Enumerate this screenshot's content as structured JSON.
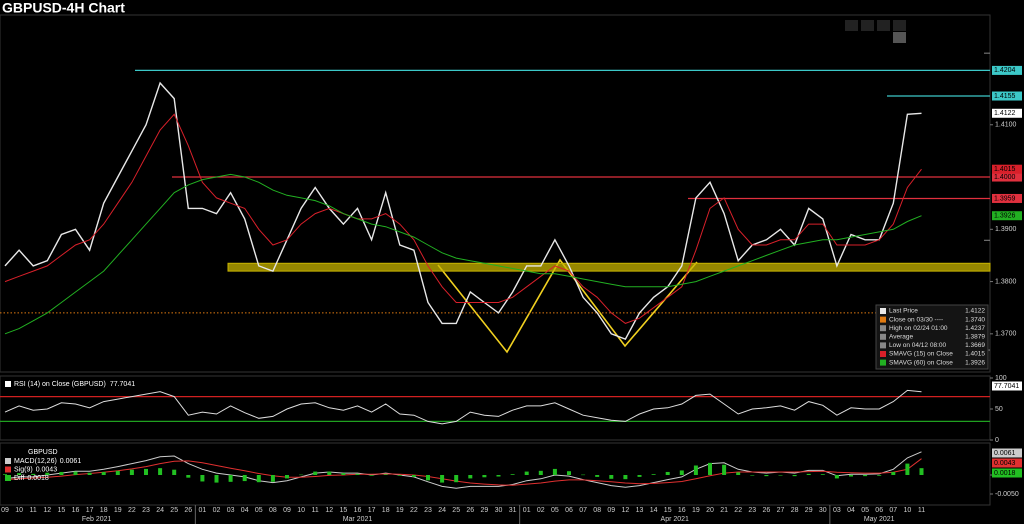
{
  "chart_data": [
    {
      "type": "line",
      "title": "GBPUSD-4H Chart",
      "categories": [
        "09",
        "10",
        "11",
        "12",
        "15",
        "16",
        "17",
        "18",
        "19",
        "22",
        "23",
        "24",
        "25",
        "26",
        "01",
        "02",
        "03",
        "04",
        "05",
        "08",
        "09",
        "10",
        "11",
        "12",
        "15",
        "16",
        "17",
        "18",
        "19",
        "22",
        "23",
        "24",
        "25",
        "26",
        "29",
        "30",
        "31",
        "01",
        "02",
        "05",
        "06",
        "07",
        "08",
        "09",
        "12",
        "13",
        "14",
        "15",
        "16",
        "19",
        "20",
        "21",
        "22",
        "23",
        "26",
        "27",
        "28",
        "29",
        "30",
        "03",
        "04",
        "05",
        "06",
        "07",
        "10",
        "11"
      ],
      "month_labels": [
        "Feb 2021",
        "Mar 2021",
        "Apr 2021",
        "May 2021"
      ],
      "ylim": [
        1.3627,
        1.431
      ],
      "yticks": [
        {
          "value": 1.37,
          "label": "1.3700"
        },
        {
          "value": 1.38,
          "label": "1.3800"
        },
        {
          "value": 1.39,
          "label": "1.3900"
        },
        {
          "value": 1.41,
          "label": "1.4100"
        }
      ],
      "series": [
        {
          "name": "Last Price",
          "color": "#e8e8e8",
          "values": [
            1.383,
            1.386,
            1.383,
            1.384,
            1.389,
            1.39,
            1.386,
            1.395,
            1.4,
            1.405,
            1.41,
            1.418,
            1.415,
            1.394,
            1.394,
            1.393,
            1.397,
            1.392,
            1.383,
            1.382,
            1.388,
            1.394,
            1.398,
            1.394,
            1.391,
            1.394,
            1.388,
            1.397,
            1.387,
            1.386,
            1.376,
            1.372,
            1.372,
            1.378,
            1.376,
            1.374,
            1.378,
            1.383,
            1.383,
            1.388,
            1.383,
            1.377,
            1.374,
            1.37,
            1.369,
            1.374,
            1.377,
            1.379,
            1.383,
            1.396,
            1.399,
            1.393,
            1.384,
            1.387,
            1.388,
            1.39,
            1.387,
            1.394,
            1.392,
            1.383,
            1.389,
            1.388,
            1.388,
            1.395,
            1.412,
            1.4122
          ]
        },
        {
          "name": "SMAVG (15)  on Close",
          "color": "#d8202a",
          "values": [
            1.38,
            1.381,
            1.382,
            1.383,
            1.385,
            1.387,
            1.388,
            1.391,
            1.395,
            1.399,
            1.404,
            1.409,
            1.412,
            1.406,
            1.399,
            1.396,
            1.395,
            1.394,
            1.39,
            1.387,
            1.388,
            1.391,
            1.393,
            1.394,
            1.393,
            1.392,
            1.392,
            1.393,
            1.391,
            1.388,
            1.383,
            1.379,
            1.376,
            1.376,
            1.376,
            1.376,
            1.377,
            1.379,
            1.381,
            1.383,
            1.382,
            1.379,
            1.377,
            1.374,
            1.372,
            1.373,
            1.375,
            1.377,
            1.379,
            1.386,
            1.394,
            1.396,
            1.39,
            1.387,
            1.387,
            1.388,
            1.388,
            1.391,
            1.391,
            1.387,
            1.387,
            1.387,
            1.388,
            1.391,
            1.398,
            1.4015
          ]
        },
        {
          "name": "SMAVG (60)  on Close",
          "color": "#22b022",
          "values": [
            1.37,
            1.371,
            1.3725,
            1.374,
            1.376,
            1.378,
            1.38,
            1.382,
            1.385,
            1.388,
            1.391,
            1.394,
            1.397,
            1.3985,
            1.3995,
            1.4,
            1.4005,
            1.4,
            1.399,
            1.3975,
            1.3965,
            1.396,
            1.3955,
            1.3945,
            1.393,
            1.392,
            1.391,
            1.3905,
            1.3895,
            1.3885,
            1.387,
            1.3855,
            1.3845,
            1.384,
            1.3835,
            1.383,
            1.3825,
            1.382,
            1.3815,
            1.3815,
            1.381,
            1.3805,
            1.38,
            1.3795,
            1.379,
            1.379,
            1.379,
            1.379,
            1.3795,
            1.38,
            1.381,
            1.382,
            1.383,
            1.384,
            1.385,
            1.386,
            1.387,
            1.3875,
            1.388,
            1.388,
            1.3885,
            1.389,
            1.3895,
            1.39,
            1.3915,
            1.3926
          ]
        }
      ],
      "stats": [
        {
          "label": "Close on 03/30 ----",
          "value": 1.374,
          "value_label": "1.3740",
          "color": "#e07a10"
        },
        {
          "label": "High on 02/24 01:00",
          "value": 1.4237,
          "color": "#888888"
        },
        {
          "label": "Average",
          "value": 1.3879,
          "color": "#888888"
        },
        {
          "label": "Low on 04/12 08:00",
          "value": 1.3669,
          "color": "#888888"
        }
      ],
      "levels": [
        {
          "value": 1.4204,
          "color": "#3cc8c8"
        },
        {
          "value": 1.4155,
          "color": "#3cc8c8"
        },
        {
          "value": 1.4,
          "label": "1.4000",
          "color": "#e0303e"
        },
        {
          "value": 1.3959,
          "color": "#e0303e"
        }
      ],
      "band": {
        "range": [
          1.382,
          1.3835
        ],
        "color": "#c8b400"
      }
    },
    {
      "type": "line",
      "title": "RSI (14)  on Close (GBPUSD)",
      "ylim": [
        0,
        100
      ],
      "yticks": [
        0,
        50,
        100
      ],
      "levels": [
        {
          "value": 70,
          "color": "#d02020"
        },
        {
          "value": 30,
          "color": "#20a020"
        }
      ],
      "series": [
        {
          "name": "RSI",
          "color": "#dddddd",
          "values": [
            45,
            55,
            48,
            50,
            60,
            58,
            52,
            62,
            66,
            70,
            74,
            78,
            70,
            40,
            45,
            42,
            55,
            44,
            35,
            38,
            50,
            58,
            60,
            52,
            48,
            55,
            45,
            58,
            42,
            40,
            30,
            26,
            30,
            45,
            40,
            38,
            48,
            55,
            55,
            60,
            50,
            40,
            36,
            32,
            30,
            42,
            50,
            52,
            58,
            72,
            74,
            58,
            42,
            50,
            52,
            55,
            48,
            62,
            56,
            40,
            52,
            50,
            50,
            62,
            80,
            77.7041
          ]
        }
      ]
    },
    {
      "type": "line",
      "title": "GBPUSD",
      "ylim": [
        -0.0079,
        0.0079
      ],
      "yticks": [
        {
          "value": 0,
          "label": "0.00"
        },
        {
          "value": -0.005,
          "label": "-0.0050"
        }
      ],
      "series": [
        {
          "name": "MACD(12,26)",
          "color": "#cccccc",
          "values": [
            -0.001,
            -0.0005,
            -0.0005,
            0.0,
            0.0005,
            0.001,
            0.001,
            0.0015,
            0.0022,
            0.003,
            0.0038,
            0.0048,
            0.005,
            0.003,
            0.0015,
            0.0005,
            0.0,
            -0.0005,
            -0.0015,
            -0.002,
            -0.0015,
            -0.0005,
            0.0005,
            0.0008,
            0.0005,
            0.0005,
            0.0,
            0.0005,
            0.0,
            -0.0005,
            -0.0018,
            -0.003,
            -0.0035,
            -0.003,
            -0.003,
            -0.003,
            -0.0025,
            -0.0015,
            -0.001,
            0.0,
            -0.0003,
            -0.0012,
            -0.002,
            -0.0028,
            -0.0032,
            -0.0028,
            -0.002,
            -0.0012,
            -0.0005,
            0.0015,
            0.003,
            0.0032,
            0.0015,
            0.0008,
            0.0005,
            0.0008,
            0.0005,
            0.0012,
            0.0012,
            -0.0002,
            0.0002,
            0.0002,
            0.0003,
            0.0015,
            0.0045,
            0.0061
          ]
        },
        {
          "name": "Sig(9)",
          "color": "#e03030",
          "values": [
            -0.0012,
            -0.001,
            -0.0008,
            -0.0006,
            -0.0003,
            0.0001,
            0.0004,
            0.0007,
            0.0011,
            0.0016,
            0.0022,
            0.003,
            0.0036,
            0.0037,
            0.0032,
            0.0025,
            0.0018,
            0.0011,
            0.0004,
            -0.0002,
            -0.0006,
            -0.0006,
            -0.0004,
            -0.0001,
            0.0,
            0.0002,
            0.0002,
            0.0003,
            0.0002,
            0.0,
            -0.0004,
            -0.001,
            -0.0016,
            -0.0021,
            -0.0024,
            -0.0026,
            -0.0027,
            -0.0024,
            -0.0021,
            -0.0016,
            -0.0013,
            -0.0013,
            -0.0015,
            -0.0018,
            -0.0021,
            -0.0023,
            -0.0022,
            -0.002,
            -0.0017,
            -0.001,
            -0.0002,
            0.0005,
            0.0008,
            0.0008,
            0.0008,
            0.0008,
            0.0008,
            0.0009,
            0.001,
            0.0007,
            0.0006,
            0.0005,
            0.0005,
            0.0007,
            0.0015,
            0.0043
          ]
        },
        {
          "name": "Diff",
          "type": "bar",
          "color": "#22c022",
          "values": [
            0.0002,
            0.0005,
            0.0003,
            0.0006,
            0.0008,
            0.0009,
            0.0006,
            0.0008,
            0.0011,
            0.0014,
            0.0016,
            0.0018,
            0.0014,
            -0.0007,
            -0.0017,
            -0.002,
            -0.0018,
            -0.0016,
            -0.0019,
            -0.0018,
            -0.0009,
            0.0001,
            0.0009,
            0.0009,
            0.0005,
            0.0003,
            -0.0002,
            0.0002,
            -0.0002,
            -0.0005,
            -0.0014,
            -0.002,
            -0.0019,
            -0.0009,
            -0.0006,
            -0.0004,
            0.0002,
            0.0009,
            0.0011,
            0.0016,
            0.001,
            0.0001,
            -0.0005,
            -0.001,
            -0.0011,
            -0.0005,
            0.0002,
            0.0008,
            0.0012,
            0.0025,
            0.0032,
            0.0027,
            0.0007,
            0.0,
            -0.0003,
            0.0,
            -0.0003,
            0.0003,
            0.0002,
            -0.0009,
            -0.0004,
            -0.0003,
            -0.0002,
            0.0008,
            0.003,
            0.0018
          ]
        }
      ]
    }
  ]
}
